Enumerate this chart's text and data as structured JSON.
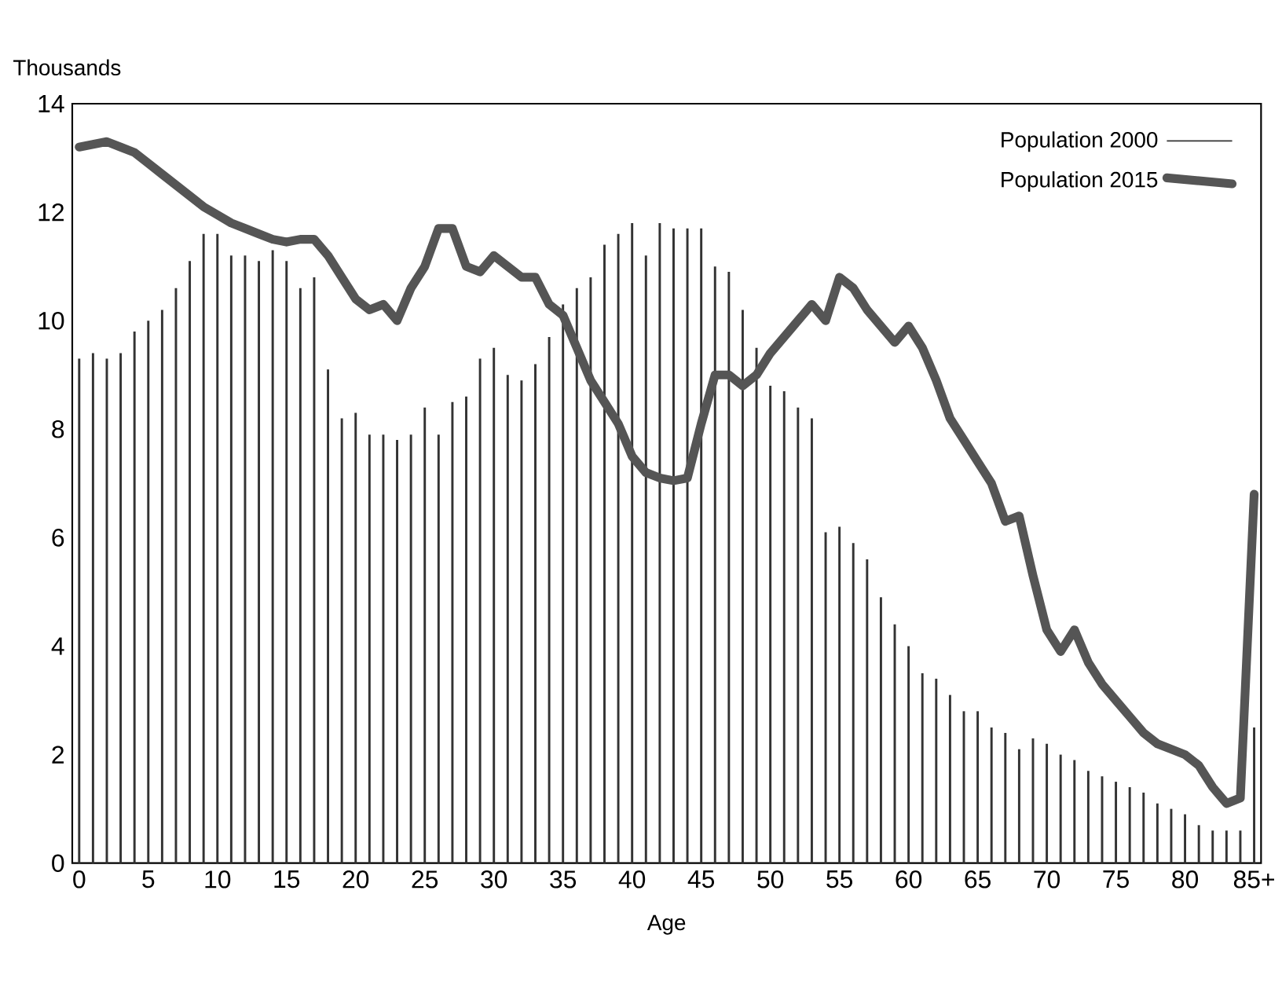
{
  "chart_data": {
    "type": "bar",
    "xlabel": "Age",
    "ylabel": "Thousands",
    "categories": [
      "0",
      null,
      null,
      null,
      null,
      "5",
      null,
      null,
      null,
      null,
      "10",
      null,
      null,
      null,
      null,
      "15",
      null,
      null,
      null,
      null,
      "20",
      null,
      null,
      null,
      null,
      "25",
      null,
      null,
      null,
      null,
      "30",
      null,
      null,
      null,
      null,
      "35",
      null,
      null,
      null,
      null,
      "40",
      null,
      null,
      null,
      null,
      "45",
      null,
      null,
      null,
      null,
      "50",
      null,
      null,
      null,
      null,
      "55",
      null,
      null,
      null,
      null,
      "60",
      null,
      null,
      null,
      null,
      "65",
      null,
      null,
      null,
      null,
      "70",
      null,
      null,
      null,
      null,
      "75",
      null,
      null,
      null,
      null,
      "80",
      null,
      null,
      null,
      null,
      "85+"
    ],
    "series": [
      {
        "name": "Population 2000",
        "color": "#333333",
        "values": [
          9.3,
          9.4,
          9.3,
          9.4,
          9.8,
          10.0,
          10.2,
          10.6,
          11.1,
          11.6,
          11.6,
          11.2,
          11.2,
          11.1,
          11.3,
          11.1,
          10.6,
          10.8,
          9.1,
          8.2,
          8.3,
          7.9,
          7.9,
          7.8,
          7.9,
          8.4,
          7.9,
          8.5,
          8.6,
          9.3,
          9.5,
          9.0,
          8.9,
          9.2,
          9.7,
          10.3,
          10.6,
          10.8,
          11.4,
          11.6,
          11.8,
          11.2,
          11.8,
          11.7,
          11.7,
          11.7,
          11.0,
          10.9,
          10.2,
          9.5,
          8.8,
          8.7,
          8.4,
          8.2,
          6.1,
          6.2,
          5.9,
          5.6,
          4.9,
          4.4,
          4.0,
          3.5,
          3.4,
          3.1,
          2.8,
          2.8,
          2.5,
          2.4,
          2.1,
          2.3,
          2.2,
          2.0,
          1.9,
          1.7,
          1.6,
          1.5,
          1.4,
          1.3,
          1.1,
          1.0,
          0.9,
          0.7,
          0.6,
          0.6,
          0.6,
          2.5
        ]
      },
      {
        "name": "Population 2015",
        "type": "line",
        "color": "#555555",
        "values": [
          13.2,
          13.25,
          13.3,
          13.2,
          13.1,
          12.9,
          12.7,
          12.5,
          12.3,
          12.1,
          11.95,
          11.8,
          11.7,
          11.6,
          11.5,
          11.45,
          11.5,
          11.5,
          11.2,
          10.8,
          10.4,
          10.2,
          10.3,
          10.0,
          10.6,
          11.0,
          11.7,
          11.7,
          11.0,
          10.9,
          11.2,
          11.0,
          10.8,
          10.8,
          10.3,
          10.1,
          9.5,
          8.9,
          8.5,
          8.1,
          7.5,
          7.2,
          7.1,
          7.05,
          7.1,
          8.1,
          9.0,
          9.0,
          8.8,
          9.0,
          9.4,
          9.7,
          10.0,
          10.3,
          10.0,
          10.8,
          10.6,
          10.2,
          9.9,
          9.6,
          9.9,
          9.5,
          8.9,
          8.2,
          7.8,
          7.4,
          7.0,
          6.3,
          6.4,
          5.3,
          4.3,
          3.9,
          4.3,
          3.7,
          3.3,
          3.0,
          2.7,
          2.4,
          2.2,
          2.1,
          2.0,
          1.8,
          1.4,
          1.1,
          1.2,
          6.8
        ]
      }
    ],
    "ylim": [
      0,
      14
    ],
    "yticks": [
      0,
      2,
      4,
      6,
      8,
      10,
      12,
      14
    ],
    "legend": "top right"
  }
}
